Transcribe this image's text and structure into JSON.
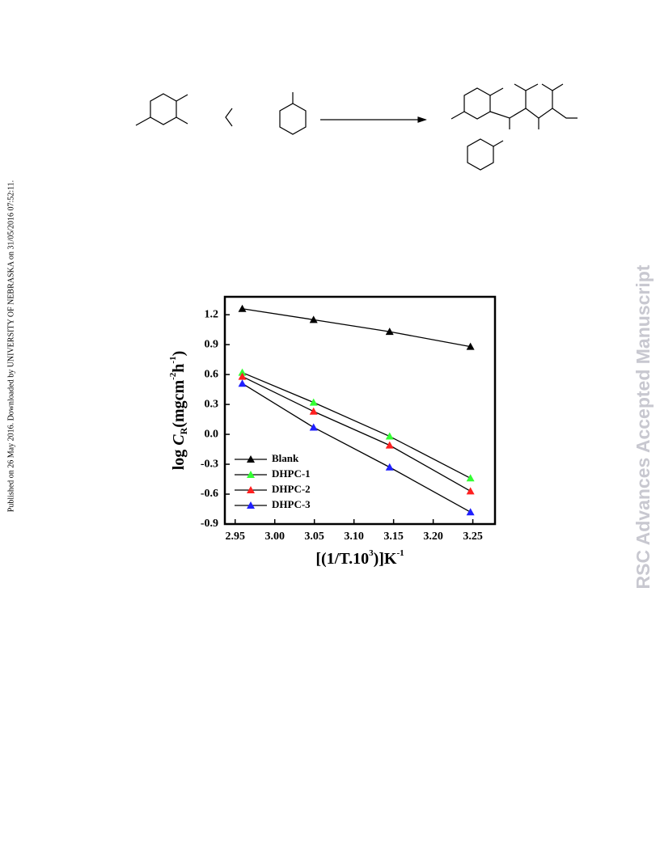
{
  "side_note": "Published on 26 May 2016. Downloaded by UNIVERSITY OF NEBRASKA on 31/05/2016 07:52:11.",
  "watermark": "RSC Advances Accepted Manuscript",
  "chart_data": {
    "type": "line",
    "xlabel": [
      "[(1/T.10",
      "3",
      ")]K",
      "-1"
    ],
    "ylabel": [
      "log ",
      "C",
      "R",
      "(mgcm",
      "-2",
      "h",
      "-1",
      ")"
    ],
    "x": [
      2.959,
      3.049,
      3.145,
      3.247
    ],
    "series": [
      {
        "name": "Blank",
        "color": "#000000",
        "values": [
          1.26,
          1.15,
          1.03,
          0.88
        ]
      },
      {
        "name": "DHPC-1",
        "color": "#33ff33",
        "values": [
          0.62,
          0.32,
          -0.02,
          -0.44
        ]
      },
      {
        "name": "DHPC-2",
        "color": "#ff2020",
        "values": [
          0.58,
          0.23,
          -0.11,
          -0.57
        ]
      },
      {
        "name": "DHPC-3",
        "color": "#2020ff",
        "values": [
          0.51,
          0.07,
          -0.33,
          -0.78
        ]
      }
    ],
    "xlim": [
      2.937,
      3.278
    ],
    "ylim": [
      -0.9,
      1.38
    ],
    "xticks": [
      2.95,
      {
        "value": 3,
        "label": "3.00"
      },
      3.05,
      {
        "value": 3.1,
        "label": "3.10"
      },
      3.15,
      {
        "value": 3.2,
        "label": "3.20"
      },
      3.25
    ],
    "yticks": [
      1.2,
      0.9,
      0.6,
      0.3,
      {
        "value": 0,
        "label": "0.0"
      },
      -0.3,
      -0.6,
      -0.9
    ],
    "legend": "lower left",
    "grid": false
  }
}
